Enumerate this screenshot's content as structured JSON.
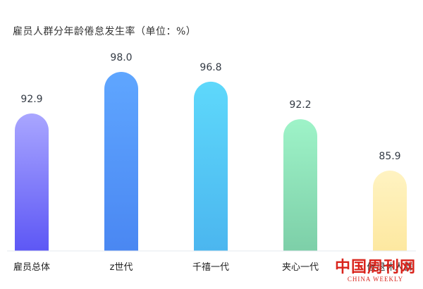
{
  "chart_data": {
    "type": "bar",
    "title": "雇员人群分年龄倦怠发生率（单位：%）",
    "categories": [
      "雇员总体",
      "z世代",
      "千禧一代",
      "夹心一代",
      "候退休人群"
    ],
    "values": [
      92.9,
      98.0,
      96.8,
      92.2,
      85.9
    ],
    "value_labels": [
      "92.9",
      "98.0",
      "96.8",
      "92.2",
      "85.9"
    ],
    "ylim": [
      0,
      100
    ],
    "grid": false,
    "legend": "none",
    "bar_gradients": [
      [
        "#a9a6ff",
        "#5d57f5"
      ],
      [
        "#5fa6ff",
        "#4a87f2"
      ],
      [
        "#5ed8fb",
        "#4bb6ef"
      ],
      [
        "#9ef3c8",
        "#7dcfa8"
      ],
      [
        "#fff3c2",
        "#fde8a0"
      ]
    ]
  },
  "watermark": {
    "chinese": "中国周刊网",
    "english": "CHINA WEEKLY"
  }
}
